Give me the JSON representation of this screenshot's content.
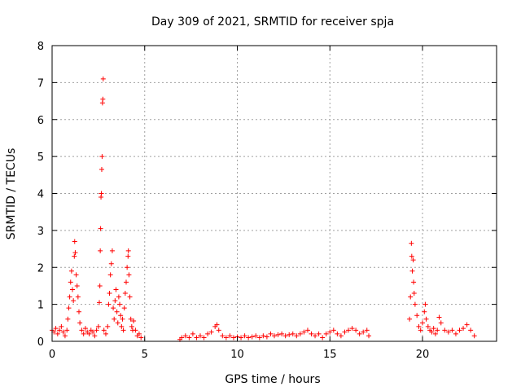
{
  "chart_data": {
    "type": "scatter",
    "title": "Day 309 of 2021, SRMTID for receiver spja",
    "xlabel": "GPS time / hours",
    "ylabel": "SRMTID / TECUs",
    "xlim": [
      0,
      24
    ],
    "ylim": [
      0,
      8
    ],
    "x_ticks": [
      0,
      5,
      10,
      15,
      20
    ],
    "y_ticks": [
      0,
      1,
      2,
      3,
      4,
      5,
      6,
      7,
      8
    ],
    "grid": true,
    "marker": "+",
    "series": [
      {
        "name": "SRMTID",
        "color": "#ff0000",
        "points": [
          [
            0.0,
            0.3
          ],
          [
            0.1,
            0.25
          ],
          [
            0.2,
            0.35
          ],
          [
            0.3,
            0.2
          ],
          [
            0.4,
            0.3
          ],
          [
            0.5,
            0.4
          ],
          [
            0.6,
            0.25
          ],
          [
            0.7,
            0.15
          ],
          [
            0.8,
            0.3
          ],
          [
            0.85,
            0.6
          ],
          [
            0.9,
            0.9
          ],
          [
            0.95,
            1.2
          ],
          [
            1.0,
            1.6
          ],
          [
            1.05,
            1.9
          ],
          [
            1.1,
            1.4
          ],
          [
            1.15,
            1.1
          ],
          [
            1.2,
            2.3
          ],
          [
            1.22,
            2.7
          ],
          [
            1.25,
            2.4
          ],
          [
            1.3,
            1.8
          ],
          [
            1.35,
            1.5
          ],
          [
            1.4,
            1.2
          ],
          [
            1.45,
            0.8
          ],
          [
            1.5,
            0.5
          ],
          [
            1.6,
            0.3
          ],
          [
            1.7,
            0.2
          ],
          [
            1.8,
            0.35
          ],
          [
            1.9,
            0.25
          ],
          [
            2.0,
            0.2
          ],
          [
            2.1,
            0.3
          ],
          [
            2.2,
            0.25
          ],
          [
            2.3,
            0.15
          ],
          [
            2.4,
            0.3
          ],
          [
            2.5,
            0.4
          ],
          [
            2.55,
            1.05
          ],
          [
            2.58,
            1.5
          ],
          [
            2.6,
            2.45
          ],
          [
            2.62,
            3.05
          ],
          [
            2.64,
            3.9
          ],
          [
            2.66,
            4.0
          ],
          [
            2.68,
            4.65
          ],
          [
            2.7,
            5.0
          ],
          [
            2.72,
            6.45
          ],
          [
            2.74,
            6.55
          ],
          [
            2.76,
            7.1
          ],
          [
            2.8,
            0.3
          ],
          [
            2.9,
            0.2
          ],
          [
            3.0,
            0.4
          ],
          [
            3.05,
            1.0
          ],
          [
            3.1,
            1.3
          ],
          [
            3.15,
            1.8
          ],
          [
            3.2,
            2.1
          ],
          [
            3.25,
            2.45
          ],
          [
            3.3,
            0.9
          ],
          [
            3.35,
            0.6
          ],
          [
            3.4,
            1.1
          ],
          [
            3.45,
            1.4
          ],
          [
            3.5,
            0.8
          ],
          [
            3.55,
            0.5
          ],
          [
            3.6,
            1.2
          ],
          [
            3.65,
            1.0
          ],
          [
            3.7,
            0.7
          ],
          [
            3.75,
            0.4
          ],
          [
            3.8,
            0.6
          ],
          [
            3.85,
            0.3
          ],
          [
            3.9,
            0.9
          ],
          [
            3.95,
            1.3
          ],
          [
            4.0,
            1.6
          ],
          [
            4.05,
            2.0
          ],
          [
            4.1,
            2.3
          ],
          [
            4.12,
            2.45
          ],
          [
            4.15,
            1.8
          ],
          [
            4.2,
            1.2
          ],
          [
            4.25,
            0.6
          ],
          [
            4.3,
            0.4
          ],
          [
            4.35,
            0.3
          ],
          [
            4.4,
            0.55
          ],
          [
            4.5,
            0.3
          ],
          [
            4.6,
            0.15
          ],
          [
            4.7,
            0.2
          ],
          [
            4.8,
            0.1
          ],
          [
            6.9,
            0.05
          ],
          [
            7.0,
            0.1
          ],
          [
            7.2,
            0.15
          ],
          [
            7.4,
            0.1
          ],
          [
            7.6,
            0.2
          ],
          [
            7.8,
            0.1
          ],
          [
            8.0,
            0.15
          ],
          [
            8.2,
            0.1
          ],
          [
            8.4,
            0.2
          ],
          [
            8.6,
            0.25
          ],
          [
            8.8,
            0.4
          ],
          [
            8.9,
            0.45
          ],
          [
            9.0,
            0.3
          ],
          [
            9.2,
            0.15
          ],
          [
            9.4,
            0.1
          ],
          [
            9.6,
            0.15
          ],
          [
            9.8,
            0.1
          ],
          [
            10.0,
            0.12
          ],
          [
            10.2,
            0.1
          ],
          [
            10.4,
            0.15
          ],
          [
            10.6,
            0.1
          ],
          [
            10.8,
            0.12
          ],
          [
            11.0,
            0.15
          ],
          [
            11.2,
            0.1
          ],
          [
            11.4,
            0.15
          ],
          [
            11.6,
            0.12
          ],
          [
            11.8,
            0.2
          ],
          [
            12.0,
            0.15
          ],
          [
            12.2,
            0.18
          ],
          [
            12.4,
            0.2
          ],
          [
            12.6,
            0.15
          ],
          [
            12.8,
            0.18
          ],
          [
            13.0,
            0.2
          ],
          [
            13.2,
            0.15
          ],
          [
            13.4,
            0.2
          ],
          [
            13.6,
            0.25
          ],
          [
            13.8,
            0.3
          ],
          [
            14.0,
            0.2
          ],
          [
            14.2,
            0.15
          ],
          [
            14.4,
            0.2
          ],
          [
            14.6,
            0.1
          ],
          [
            14.8,
            0.2
          ],
          [
            15.0,
            0.25
          ],
          [
            15.2,
            0.3
          ],
          [
            15.4,
            0.2
          ],
          [
            15.6,
            0.15
          ],
          [
            15.8,
            0.25
          ],
          [
            16.0,
            0.3
          ],
          [
            16.2,
            0.35
          ],
          [
            16.4,
            0.3
          ],
          [
            16.6,
            0.2
          ],
          [
            16.8,
            0.25
          ],
          [
            17.0,
            0.3
          ],
          [
            17.1,
            0.15
          ],
          [
            19.3,
            0.6
          ],
          [
            19.35,
            1.2
          ],
          [
            19.4,
            2.65
          ],
          [
            19.42,
            2.3
          ],
          [
            19.45,
            1.9
          ],
          [
            19.5,
            2.2
          ],
          [
            19.52,
            1.6
          ],
          [
            19.55,
            1.3
          ],
          [
            19.6,
            1.0
          ],
          [
            19.7,
            0.7
          ],
          [
            19.8,
            0.4
          ],
          [
            19.9,
            0.3
          ],
          [
            20.0,
            0.5
          ],
          [
            20.1,
            0.8
          ],
          [
            20.15,
            1.0
          ],
          [
            20.2,
            0.6
          ],
          [
            20.3,
            0.4
          ],
          [
            20.4,
            0.3
          ],
          [
            20.5,
            0.25
          ],
          [
            20.6,
            0.35
          ],
          [
            20.7,
            0.2
          ],
          [
            20.8,
            0.3
          ],
          [
            20.9,
            0.65
          ],
          [
            21.0,
            0.5
          ],
          [
            21.2,
            0.3
          ],
          [
            21.4,
            0.25
          ],
          [
            21.6,
            0.3
          ],
          [
            21.8,
            0.2
          ],
          [
            22.0,
            0.3
          ],
          [
            22.2,
            0.35
          ],
          [
            22.4,
            0.45
          ],
          [
            22.6,
            0.3
          ],
          [
            22.8,
            0.15
          ]
        ]
      }
    ]
  }
}
